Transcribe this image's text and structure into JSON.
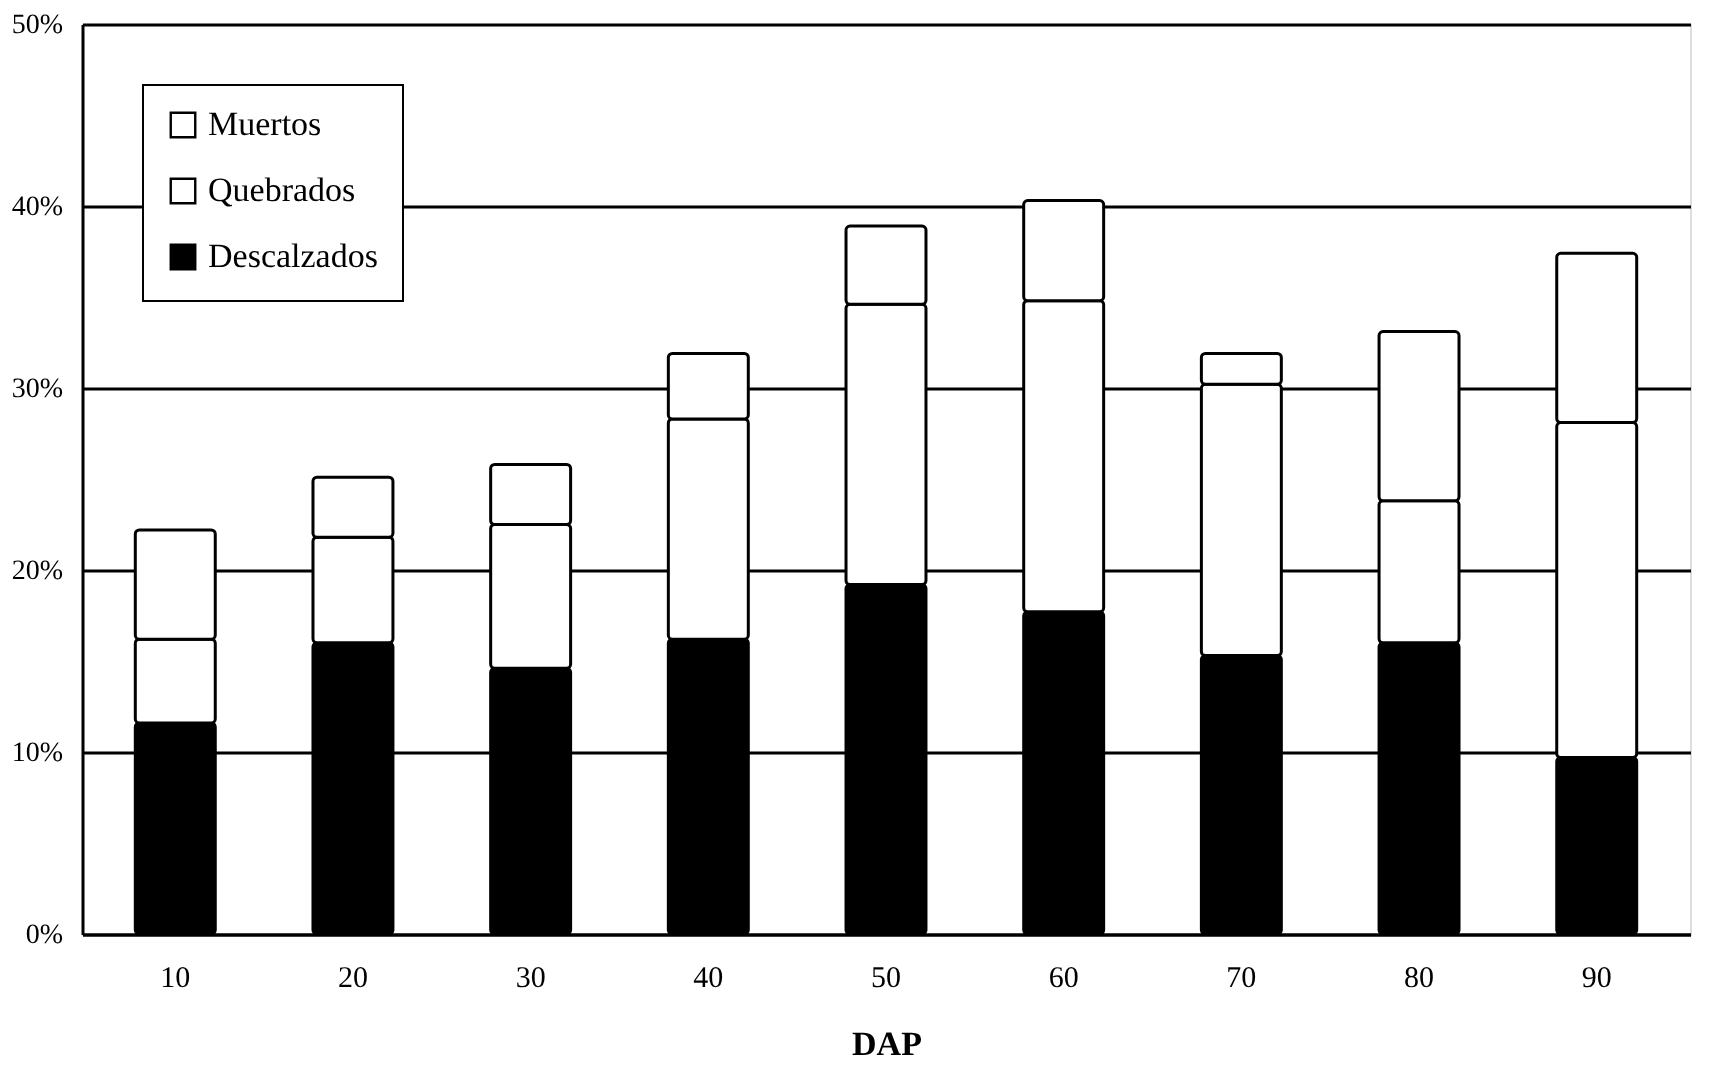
{
  "chart_data": {
    "type": "bar",
    "stacked": true,
    "xlabel": "DAP",
    "categories": [
      "10",
      "20",
      "30",
      "40",
      "50",
      "60",
      "70",
      "80",
      "90"
    ],
    "series": [
      {
        "name": "Descalzados",
        "color": "#000000",
        "values": [
          11.6,
          16.0,
          14.6,
          16.2,
          19.2,
          17.7,
          15.3,
          16.0,
          9.7
        ]
      },
      {
        "name": "Quebrados",
        "color": "#ffffff",
        "values": [
          4.6,
          5.8,
          7.9,
          12.1,
          15.4,
          17.1,
          14.9,
          7.8,
          18.4
        ]
      },
      {
        "name": "Muertos",
        "color": "#ffffff",
        "values": [
          6.0,
          3.3,
          3.3,
          3.6,
          4.3,
          5.5,
          1.7,
          9.3,
          9.3
        ]
      }
    ],
    "ylim": [
      0,
      50
    ],
    "yticks": [
      {
        "value": 0,
        "label": "0%"
      },
      {
        "value": 10,
        "label": "10%"
      },
      {
        "value": 20,
        "label": "20%"
      },
      {
        "value": 30,
        "label": "30%"
      },
      {
        "value": 40,
        "label": "40%"
      },
      {
        "value": 50,
        "label": "50%"
      }
    ],
    "grid": "y",
    "legend": "top left"
  }
}
